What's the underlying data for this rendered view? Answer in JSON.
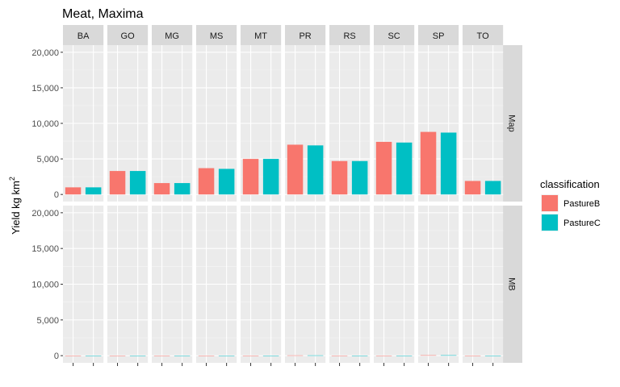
{
  "chart_data": {
    "type": "bar",
    "title": "Meat, Maxima",
    "ylabel_main": "Yield kg km",
    "ylabel_sup": "2",
    "xlabel": "",
    "facet_cols": [
      "BA",
      "GO",
      "MG",
      "MS",
      "MT",
      "PR",
      "RS",
      "SC",
      "SP",
      "TO"
    ],
    "facet_rows": [
      "Map",
      "MB"
    ],
    "ylim": [
      0,
      20000
    ],
    "yticks": [
      0,
      5000,
      10000,
      15000,
      20000
    ],
    "ytick_labels": [
      "0",
      "5,000",
      "10,000",
      "15,000",
      "20,000"
    ],
    "legend": {
      "title": "classification",
      "position": "right",
      "entries": [
        {
          "name": "PastureB",
          "color": "#F8766D"
        },
        {
          "name": "PastureC",
          "color": "#00BFC4"
        }
      ]
    },
    "series": [
      {
        "name": "PastureB",
        "color": "#F8766D",
        "Map": [
          1000,
          3300,
          1600,
          3700,
          5000,
          7000,
          4700,
          7400,
          8800,
          1900
        ],
        "MB": [
          0,
          0,
          0,
          0,
          0,
          40,
          0,
          0,
          60,
          0
        ]
      },
      {
        "name": "PastureC",
        "color": "#00BFC4",
        "Map": [
          1000,
          3300,
          1600,
          3600,
          5000,
          6900,
          4700,
          7300,
          8700,
          1900
        ],
        "MB": [
          0,
          0,
          0,
          0,
          0,
          40,
          0,
          0,
          60,
          0
        ]
      }
    ],
    "grid": true
  }
}
